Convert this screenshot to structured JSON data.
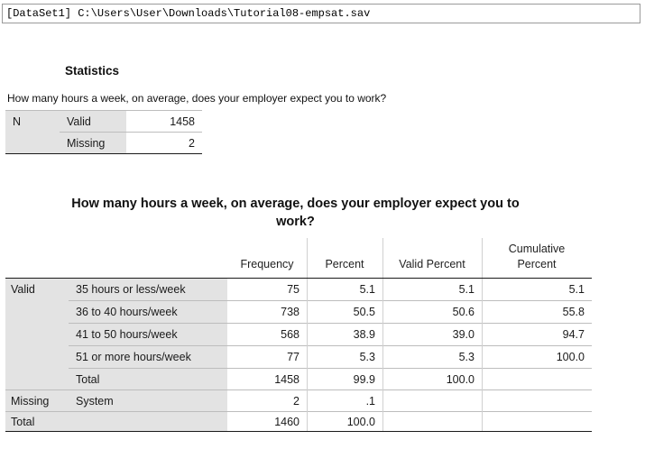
{
  "dataset": {
    "label": "[DataSet1] C:\\Users\\User\\Downloads\\Tutorial08-empsat.sav"
  },
  "statistics": {
    "title": "Statistics",
    "question": "How many hours a week, on average, does your employer expect you to work?",
    "n_label": "N",
    "rows": [
      {
        "label": "Valid",
        "value": "1458"
      },
      {
        "label": "Missing",
        "value": "2"
      }
    ]
  },
  "frequency_table": {
    "title_line1": "How many hours a week, on average, does your employer expect you to",
    "title_line2": "work?",
    "headers": {
      "frequency": "Frequency",
      "percent": "Percent",
      "valid_percent": "Valid Percent",
      "cumulative_line1": "Cumulative",
      "cumulative_line2": "Percent"
    },
    "groups": {
      "valid": "Valid",
      "missing": "Missing",
      "total": "Total"
    },
    "rows": [
      {
        "label": "35 hours or less/week",
        "frequency": "75",
        "percent": "5.1",
        "valid_percent": "5.1",
        "cumulative": "5.1"
      },
      {
        "label": "36 to 40 hours/week",
        "frequency": "738",
        "percent": "50.5",
        "valid_percent": "50.6",
        "cumulative": "55.8"
      },
      {
        "label": "41 to 50 hours/week",
        "frequency": "568",
        "percent": "38.9",
        "valid_percent": "39.0",
        "cumulative": "94.7"
      },
      {
        "label": "51 or more hours/week",
        "frequency": "77",
        "percent": "5.3",
        "valid_percent": "5.3",
        "cumulative": "100.0"
      },
      {
        "label": "Total",
        "frequency": "1458",
        "percent": "99.9",
        "valid_percent": "100.0",
        "cumulative": ""
      }
    ],
    "missing_row": {
      "label": "System",
      "frequency": "2",
      "percent": ".1"
    },
    "total_row": {
      "frequency": "1460",
      "percent": "100.0"
    }
  }
}
